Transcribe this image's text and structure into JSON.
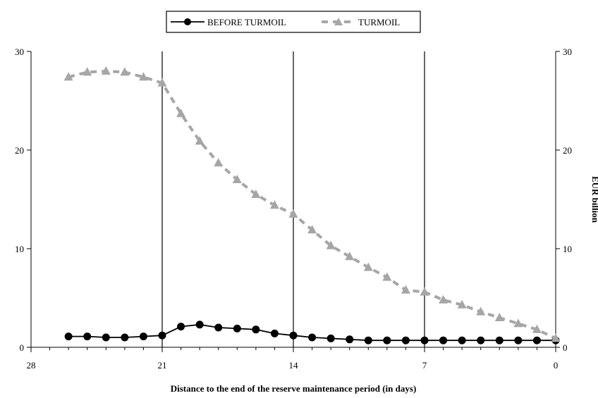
{
  "chart_data": {
    "type": "line",
    "title": "",
    "xlabel": "Distance to the end of the reserve maintenance period (in days)",
    "ylabel": "",
    "ylabel_right": "EUR billion",
    "xlim": [
      28,
      0
    ],
    "ylim": [
      0,
      30
    ],
    "x_ticks": [
      "28",
      "21",
      "14",
      "7",
      "0"
    ],
    "y_ticks": [
      "0",
      "10",
      "20",
      "30"
    ],
    "reference_lines_x": [
      21,
      14,
      7
    ],
    "legend": {
      "placement": "top-center",
      "entries": [
        "BEFORE TURMOIL",
        "TURMOIL"
      ]
    },
    "grid": false,
    "series": [
      {
        "name": "BEFORE TURMOIL",
        "style": "solid-line-circle-markers",
        "color": "#000000",
        "x": [
          26,
          25,
          24,
          23,
          22,
          21,
          20,
          19,
          18,
          17,
          16,
          15,
          14,
          13,
          12,
          11,
          10,
          9,
          8,
          7,
          6,
          5,
          4,
          3,
          2,
          1,
          0
        ],
        "values": [
          1.1,
          1.1,
          1.0,
          1.0,
          1.1,
          1.2,
          2.1,
          2.3,
          2.0,
          1.9,
          1.8,
          1.4,
          1.2,
          1.0,
          0.9,
          0.8,
          0.7,
          0.7,
          0.7,
          0.7,
          0.7,
          0.7,
          0.7,
          0.7,
          0.7,
          0.7,
          0.7
        ]
      },
      {
        "name": "TURMOIL",
        "style": "dashed-line-triangle-markers",
        "color": "#a6a6a6",
        "x": [
          26,
          25,
          24,
          23,
          22,
          21,
          20,
          19,
          18,
          17,
          16,
          15,
          14,
          13,
          12,
          11,
          10,
          9,
          8,
          7,
          6,
          5,
          4,
          3,
          2,
          1,
          0
        ],
        "values": [
          27.4,
          27.9,
          28.0,
          27.9,
          27.4,
          26.8,
          23.7,
          20.9,
          18.7,
          17.0,
          15.5,
          14.4,
          13.5,
          11.9,
          10.3,
          9.2,
          8.1,
          7.1,
          5.8,
          5.6,
          4.8,
          4.3,
          3.6,
          3.0,
          2.4,
          1.8,
          0.9
        ]
      }
    ]
  }
}
